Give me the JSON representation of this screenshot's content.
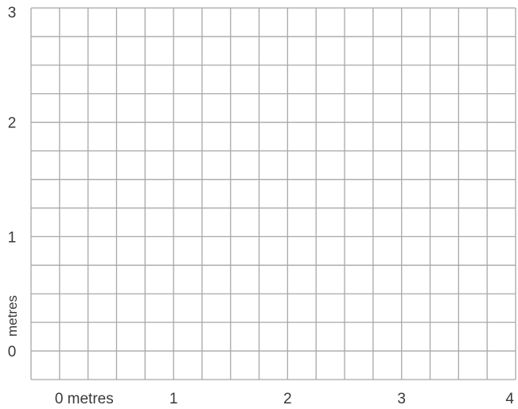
{
  "chart_data": {
    "type": "grid",
    "xlim": [
      -0.25,
      4.0
    ],
    "ylim": [
      -0.25,
      3.0
    ],
    "minor_step": 0.25,
    "grid": true,
    "x_ticks": [
      {
        "value": 0,
        "label": "0 metres"
      },
      {
        "value": 1,
        "label": "1"
      },
      {
        "value": 2,
        "label": "2"
      },
      {
        "value": 3,
        "label": "3"
      },
      {
        "value": 4,
        "label": "4"
      }
    ],
    "y_ticks": [
      {
        "value": 0,
        "label": "0"
      },
      {
        "value": 1,
        "label": "1"
      },
      {
        "value": 2,
        "label": "2"
      },
      {
        "value": 3,
        "label": "3"
      }
    ],
    "ylabel": "metres",
    "grid_color": "#a8a8a8",
    "text_color": "#3a3a3a"
  }
}
